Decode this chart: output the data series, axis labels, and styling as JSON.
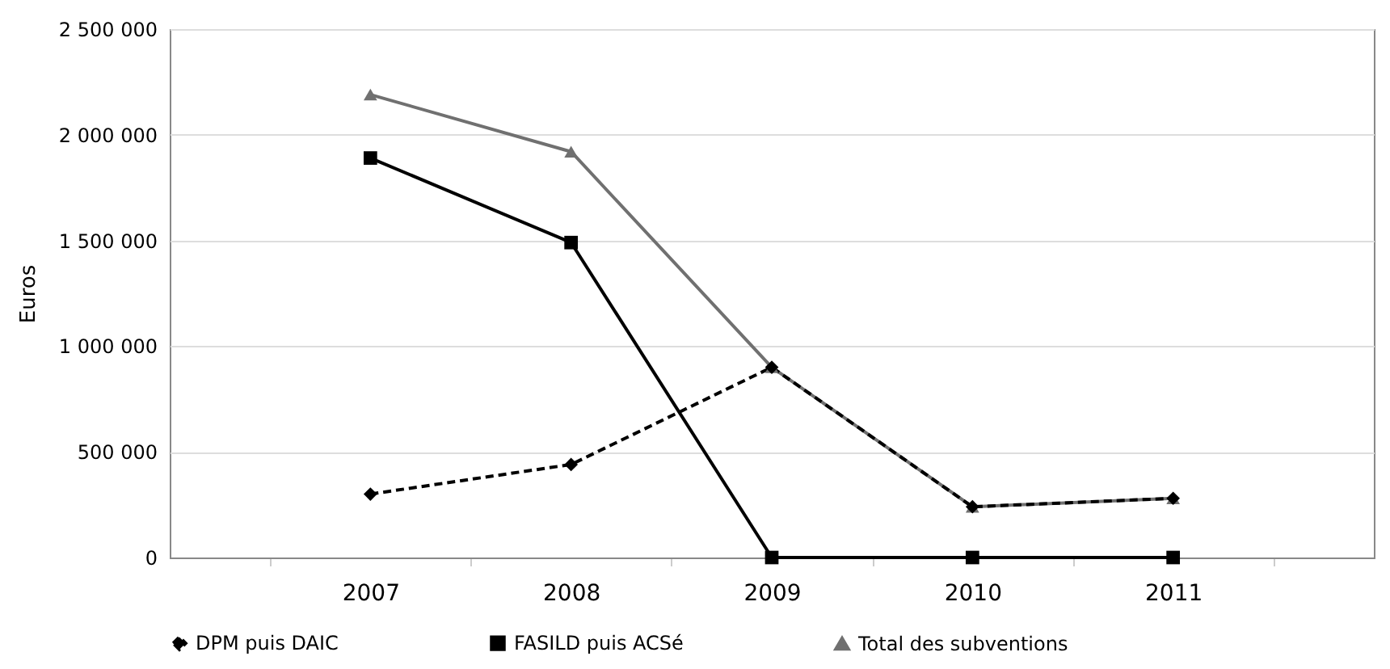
{
  "chart_data": {
    "type": "line",
    "ylabel": "Euros",
    "categories": [
      "2007",
      "2008",
      "2009",
      "2010",
      "2011"
    ],
    "series": [
      {
        "name": "DPM puis DAIC",
        "color": "#000000",
        "marker": "diamond",
        "line_style": "dashed",
        "values": [
          300000,
          440000,
          900000,
          240000,
          280000
        ]
      },
      {
        "name": "FASILD puis ACSé",
        "color": "#000000",
        "marker": "square",
        "line_style": "solid",
        "values": [
          1890000,
          1490000,
          0,
          0,
          0
        ]
      },
      {
        "name": "Total des subventions",
        "color": "#707070",
        "marker": "triangle",
        "line_style": "solid",
        "values": [
          2190000,
          1920000,
          900000,
          240000,
          280000
        ]
      }
    ],
    "ylim": [
      0,
      2500000
    ],
    "yticks": [
      0,
      {
        "value": 500000,
        "label": "500 000"
      },
      {
        "value": 1000000,
        "label": "1 000 000"
      },
      {
        "value": 1500000,
        "label": "1 500 000"
      },
      {
        "value": 2000000,
        "label": "2 000 000"
      },
      {
        "value": 2500000,
        "label": "2 500 000"
      }
    ],
    "grid": "y",
    "legend": "bottom"
  }
}
